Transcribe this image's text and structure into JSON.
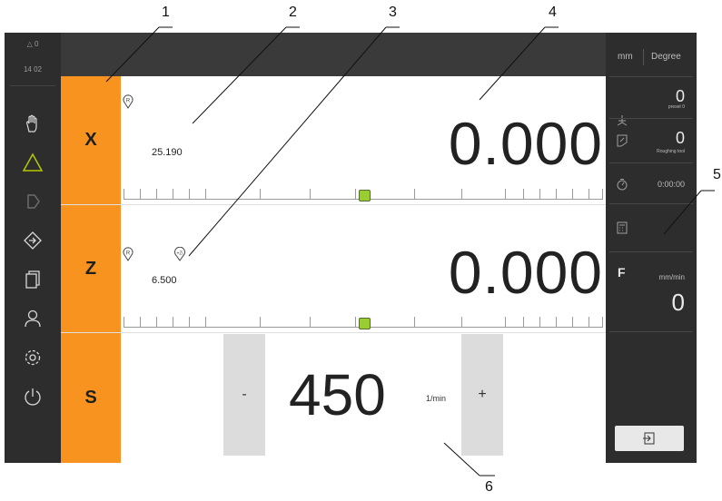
{
  "sidebar": {
    "status_top": "△ 0",
    "status_time": "14 02",
    "items": [
      {
        "name": "manual-mode-hand-icon"
      },
      {
        "name": "mdi-triangle-icon"
      },
      {
        "name": "program-run-icon"
      },
      {
        "name": "program-management-icon"
      },
      {
        "name": "file-management-icon"
      },
      {
        "name": "user-icon"
      },
      {
        "name": "settings-gear-icon"
      },
      {
        "name": "power-icon"
      }
    ]
  },
  "axes": [
    {
      "label": "X",
      "big_value": "0.000",
      "secondary_value": "25.190",
      "reference_badge": "R"
    },
    {
      "label": "Z",
      "big_value": "0.000",
      "secondary_value": "6.500",
      "reference_badge": "R",
      "tool_badge": "+Zi"
    }
  ],
  "spindle": {
    "label": "S",
    "value": "450",
    "unit": "1/min",
    "minus_label": "-",
    "plus_label": "+"
  },
  "right_panel": {
    "unit_length": "mm",
    "unit_angle": "Degree",
    "preset_value": "0",
    "preset_label": "preset 0",
    "tool_value": "0",
    "tool_label": "Roughing tool",
    "timer": "0:00:00",
    "feed_letter": "F",
    "feed_unit": "mm/min",
    "feed_value": "0"
  },
  "callouts": [
    "1",
    "2",
    "3",
    "4",
    "5",
    "6"
  ]
}
